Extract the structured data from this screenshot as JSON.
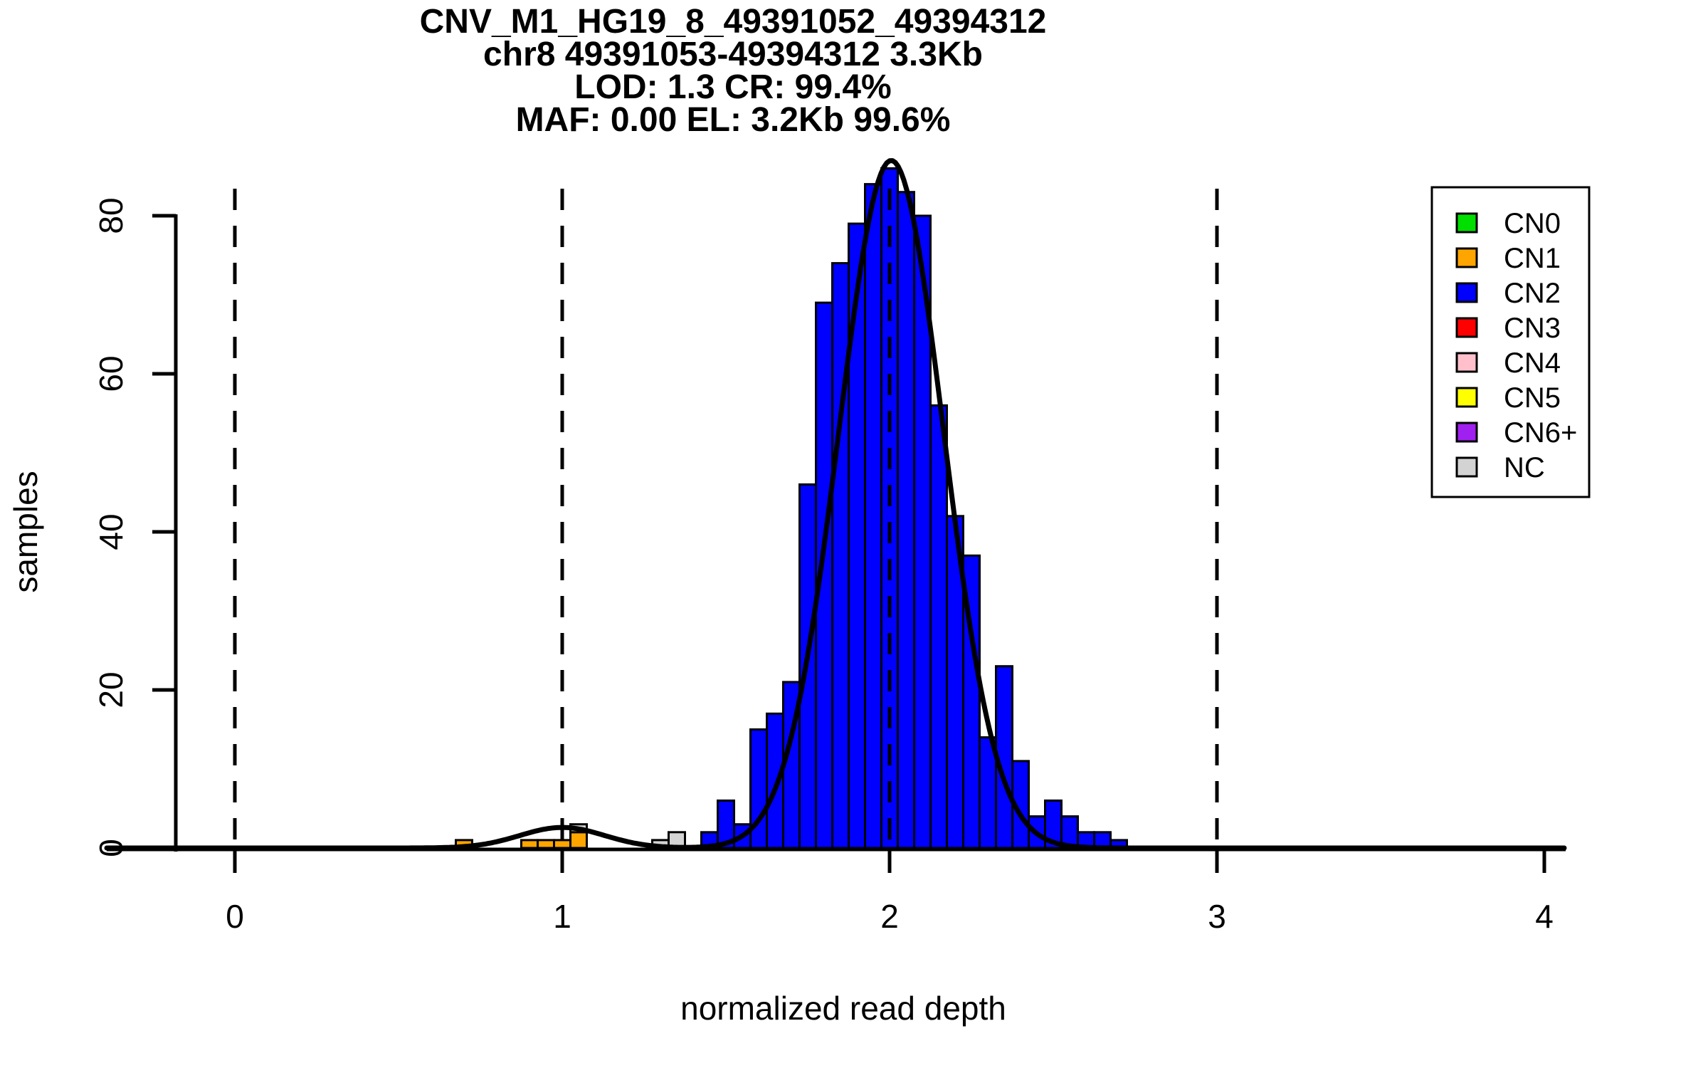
{
  "title": {
    "line1": "CNV_M1_HG19_8_49391052_49394312",
    "line2": "chr8 49391053-49394312 3.3Kb",
    "line3": "LOD: 1.3 CR: 99.4%",
    "line4": "MAF: 0.00 EL: 3.2Kb 99.6%"
  },
  "axes": {
    "x": {
      "label": "normalized read depth",
      "ticks": [
        0,
        1,
        2,
        3,
        4
      ],
      "range": [
        -0.4,
        4.1
      ]
    },
    "y": {
      "label": "samples",
      "ticks": [
        0,
        20,
        40,
        60,
        80
      ],
      "range": [
        0,
        80
      ]
    }
  },
  "legend": {
    "items": [
      {
        "label": "CN0",
        "color": "#00DF00"
      },
      {
        "label": "CN1",
        "color": "#FFA500"
      },
      {
        "label": "CN2",
        "color": "#0000FF"
      },
      {
        "label": "CN3",
        "color": "#FF0000"
      },
      {
        "label": "CN4",
        "color": "#FFC0CB"
      },
      {
        "label": "CN5",
        "color": "#FFFF00"
      },
      {
        "label": "CN6+",
        "color": "#A020F0"
      },
      {
        "label": "NC",
        "color": "#D3D3D3"
      }
    ]
  },
  "chart_data": {
    "type": "bar",
    "subtype": "stacked-histogram",
    "title": "CNV_M1_HG19_8_49391052_49394312",
    "xlabel": "normalized read depth",
    "ylabel": "samples",
    "xlim": [
      -0.4,
      4.1
    ],
    "ylim": [
      0,
      80
    ],
    "grid": false,
    "legend_position": "top-right",
    "bin_width": 0.05,
    "guide_lines_x": [
      0,
      1,
      2,
      3
    ],
    "series": [
      {
        "name": "CN1",
        "color": "#FFA500",
        "bars": [
          {
            "x": 0.7,
            "count": 1
          },
          {
            "x": 0.9,
            "count": 1
          },
          {
            "x": 0.95,
            "count": 1
          },
          {
            "x": 1.0,
            "count": 1
          },
          {
            "x": 1.05,
            "count": 2
          }
        ]
      },
      {
        "name": "NC",
        "color": "#D3D3D3",
        "bars": [
          {
            "x": 1.05,
            "count": 1,
            "stacked_on": 2
          },
          {
            "x": 1.3,
            "count": 1
          },
          {
            "x": 1.35,
            "count": 2
          }
        ]
      },
      {
        "name": "CN2",
        "color": "#0000FF",
        "bars": [
          {
            "x": 1.45,
            "count": 2
          },
          {
            "x": 1.5,
            "count": 6
          },
          {
            "x": 1.55,
            "count": 3
          },
          {
            "x": 1.6,
            "count": 15
          },
          {
            "x": 1.65,
            "count": 17
          },
          {
            "x": 1.7,
            "count": 21
          },
          {
            "x": 1.75,
            "count": 46
          },
          {
            "x": 1.8,
            "count": 69
          },
          {
            "x": 1.85,
            "count": 74
          },
          {
            "x": 1.9,
            "count": 79
          },
          {
            "x": 1.95,
            "count": 84
          },
          {
            "x": 2.0,
            "count": 86
          },
          {
            "x": 2.05,
            "count": 83
          },
          {
            "x": 2.1,
            "count": 80
          },
          {
            "x": 2.15,
            "count": 56
          },
          {
            "x": 2.2,
            "count": 42
          },
          {
            "x": 2.25,
            "count": 37
          },
          {
            "x": 2.3,
            "count": 14
          },
          {
            "x": 2.35,
            "count": 23
          },
          {
            "x": 2.4,
            "count": 11
          },
          {
            "x": 2.45,
            "count": 4
          },
          {
            "x": 2.5,
            "count": 6
          },
          {
            "x": 2.55,
            "count": 4
          },
          {
            "x": 2.6,
            "count": 2
          },
          {
            "x": 2.65,
            "count": 2
          },
          {
            "x": 2.7,
            "count": 1
          }
        ]
      }
    ],
    "density_curve": {
      "color": "#000000",
      "components": [
        {
          "mean": 1.0,
          "sd": 0.13,
          "peak": 2.6
        },
        {
          "mean": 2.005,
          "sd": 0.16,
          "peak": 87
        }
      ]
    }
  }
}
